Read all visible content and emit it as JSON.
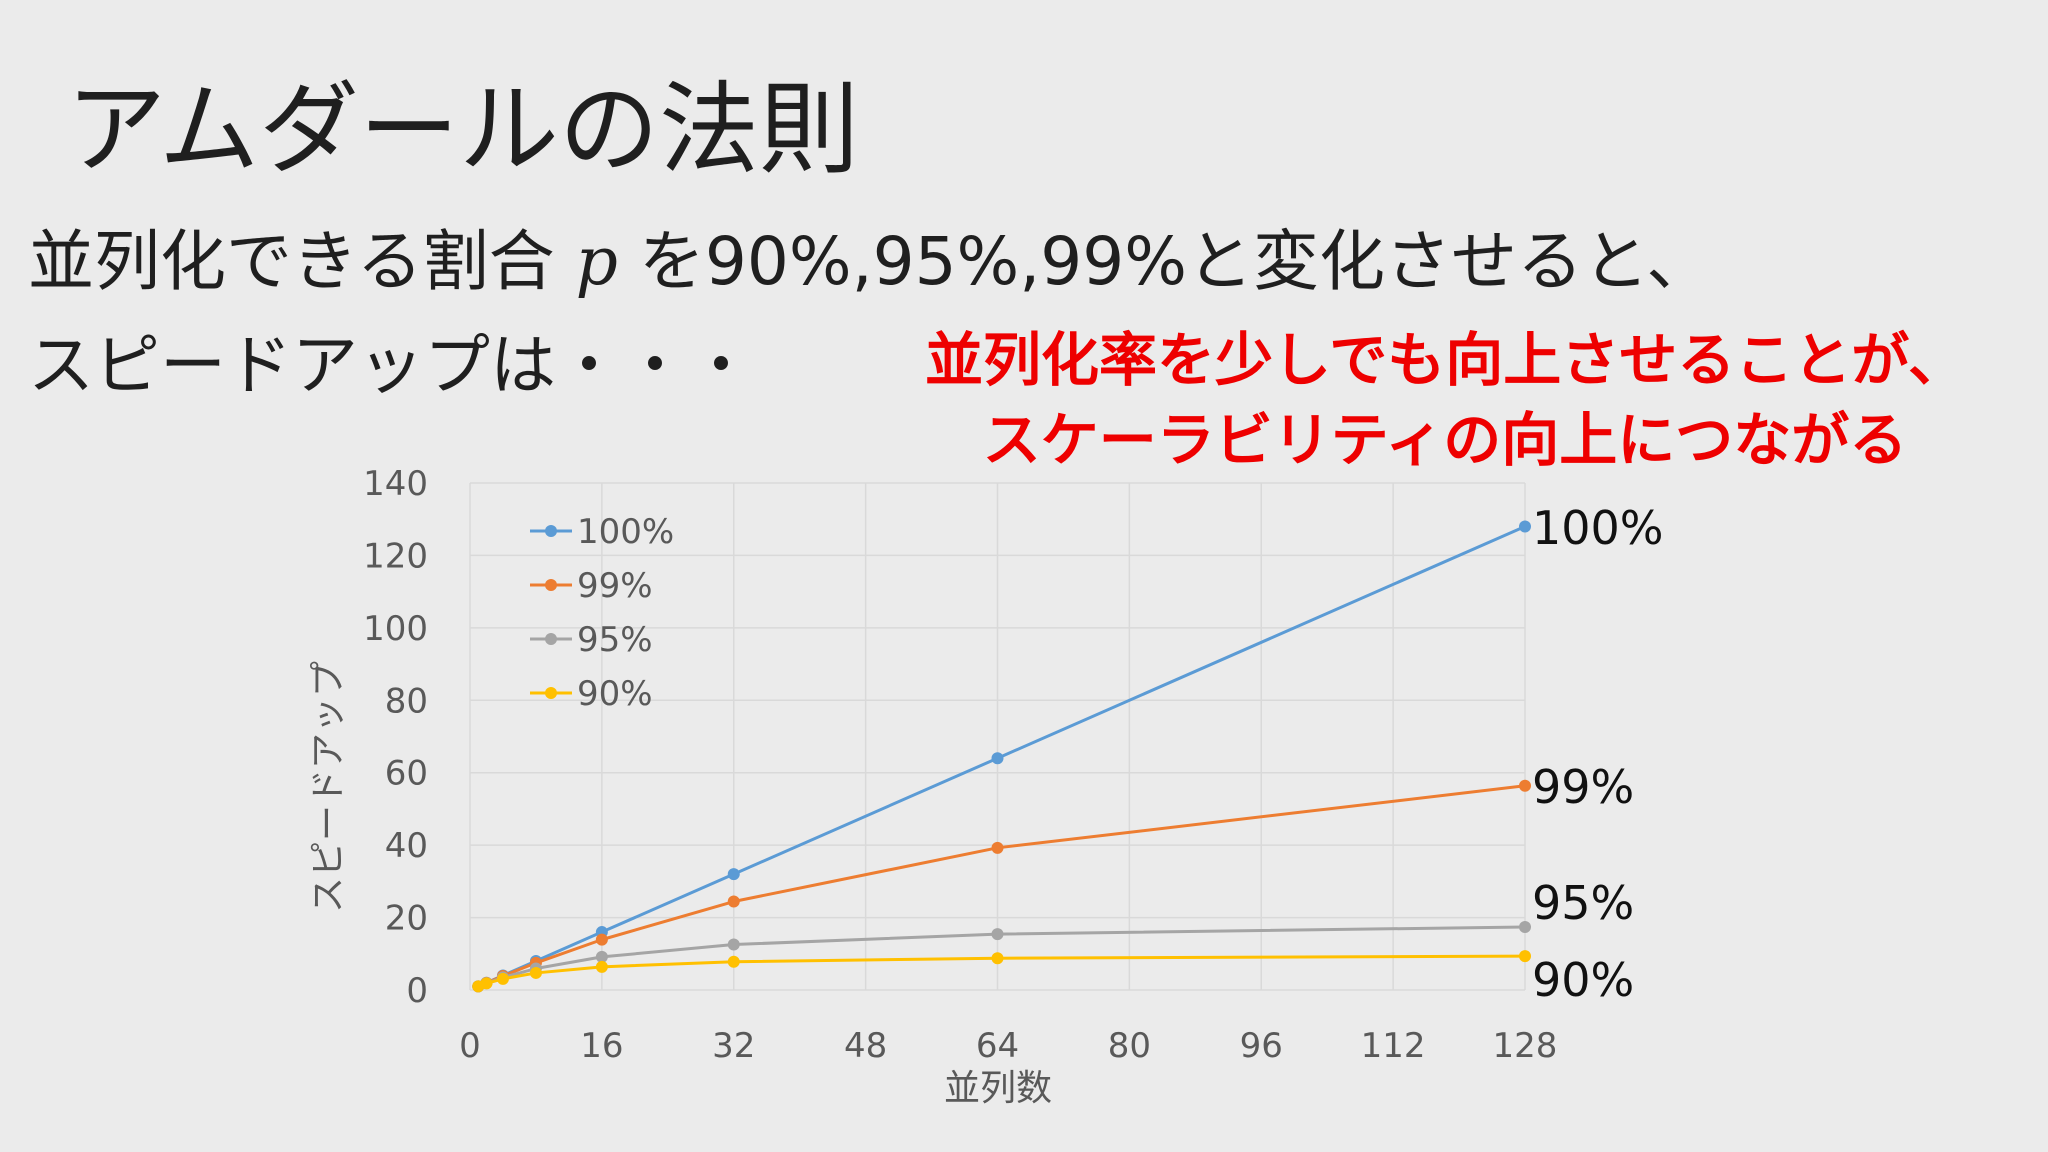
{
  "slide": {
    "title": "アムダールの法則",
    "body_line1_pre": "並列化できる割合 ",
    "body_line1_var": "p",
    "body_line1_post": " を90%,95%,99%と変化させると、",
    "body_line2": "スピードアップは・・・",
    "callout_line1": "並列化率を少しでも向上させることが、",
    "callout_line2": "スケーラビリティの向上につながる"
  },
  "colors": {
    "background": "#ebebeb",
    "callout": "#ee0000",
    "grid": "#d9d9d9",
    "axis_text": "#595959"
  },
  "chart_data": {
    "type": "line",
    "xlabel": "並列数",
    "ylabel": "スピードアップ",
    "xlim": [
      0,
      128
    ],
    "ylim": [
      0,
      140
    ],
    "xticks": [
      0,
      16,
      32,
      48,
      64,
      80,
      96,
      112,
      128
    ],
    "yticks": [
      0,
      20,
      40,
      60,
      80,
      100,
      120,
      140
    ],
    "grid": true,
    "legend_position": "top-left",
    "x": [
      1,
      2,
      4,
      8,
      16,
      32,
      64,
      128
    ],
    "series": [
      {
        "name": "100%",
        "color": "#5b9bd5",
        "values": [
          1,
          2,
          4,
          8,
          16,
          32,
          64,
          128
        ],
        "end_label": "100%"
      },
      {
        "name": "99%",
        "color": "#ed7d31",
        "values": [
          1,
          1.98,
          3.88,
          7.48,
          13.91,
          24.43,
          39.26,
          56.39
        ],
        "end_label": "99%"
      },
      {
        "name": "95%",
        "color": "#a5a5a5",
        "values": [
          1,
          1.9,
          3.48,
          5.93,
          9.14,
          12.55,
          15.42,
          17.41
        ],
        "end_label": "95%"
      },
      {
        "name": "90%",
        "color": "#ffc000",
        "values": [
          1,
          1.82,
          3.08,
          4.71,
          6.4,
          7.8,
          8.77,
          9.34
        ],
        "end_label": "90%"
      }
    ]
  }
}
